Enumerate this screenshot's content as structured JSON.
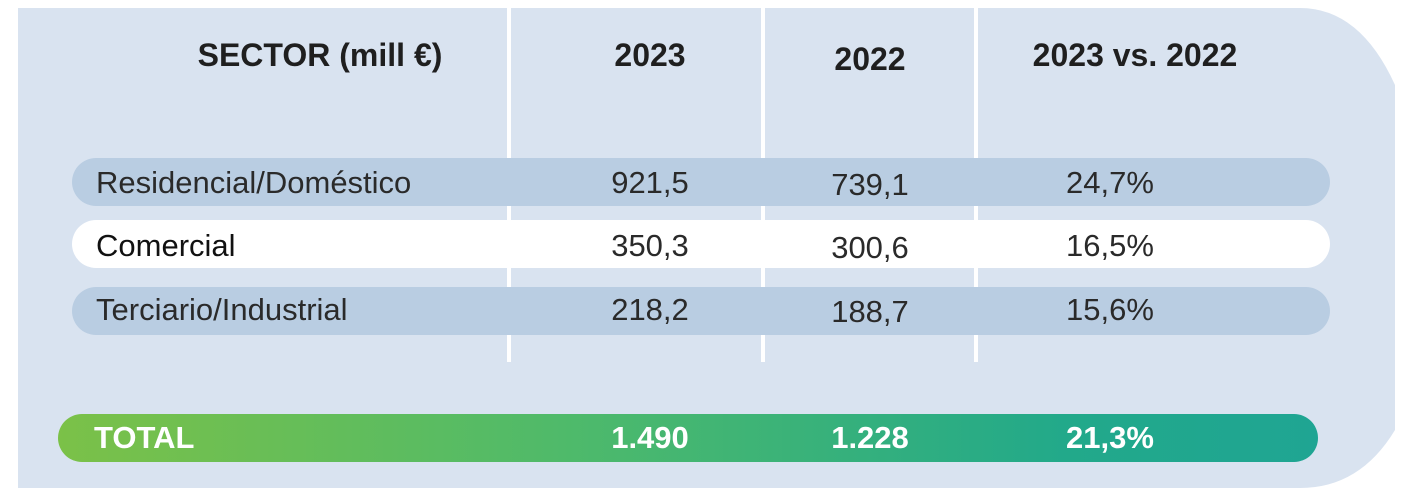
{
  "colors": {
    "panel_background": "#d9e3f0",
    "row_band_blue": "#b9cde2",
    "row_band_white": "#ffffff",
    "total_gradient_start": "#7bc148",
    "total_gradient_end": "#1fa593"
  },
  "table": {
    "headers": [
      "SECTOR (mill €)",
      "2023",
      "2022",
      "2023 vs. 2022"
    ],
    "rows": [
      {
        "sector": "Residencial/Doméstico",
        "y2023": "921,5",
        "y2022": "739,1",
        "change": "24,7%"
      },
      {
        "sector": "Comercial",
        "y2023": "350,3",
        "y2022": "300,6",
        "change": "16,5%"
      },
      {
        "sector": "Terciario/Industrial",
        "y2023": "218,2",
        "y2022": "188,7",
        "change": "15,6%"
      }
    ],
    "total": {
      "label": "TOTAL",
      "y2023": "1.490",
      "y2022": "1.228",
      "change": "21,3%"
    }
  }
}
